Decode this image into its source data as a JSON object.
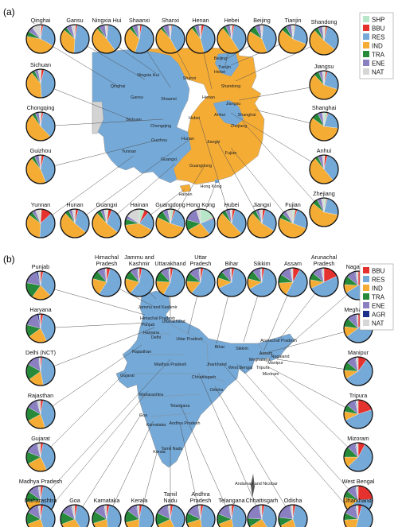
{
  "panel_a": {
    "label": "(a)",
    "legend": [
      {
        "code": "SHP",
        "color": "#b8e6c8"
      },
      {
        "code": "BBU",
        "color": "#e6322e"
      },
      {
        "code": "RES",
        "color": "#74a9d8"
      },
      {
        "code": "IND",
        "color": "#f5ac35"
      },
      {
        "code": "TRA",
        "color": "#268a3a"
      },
      {
        "code": "ENE",
        "color": "#8a7fc0"
      },
      {
        "code": "NAT",
        "color": "#d6d6d6"
      }
    ],
    "map_labels": [
      "Beijing",
      "Tianjin",
      "Hebei",
      "Shanxi",
      "Shandong",
      "Qinghai",
      "Ningxia Hui",
      "Gansu",
      "Shaanxi",
      "Henan",
      "Jiangsu",
      "Anhui",
      "Shanghai",
      "Sichuan",
      "Hubei",
      "Zhejiang",
      "Chongqing",
      "Guizhou",
      "Hunan",
      "Jiangxi",
      "Fujian",
      "Yunnan",
      "Guangxi",
      "Guangdong",
      "Hainan",
      "Hong Kong"
    ],
    "pies": [
      {
        "name": "Qinghai",
        "shares": {
          "SHP": 1,
          "BBU": 2,
          "RES": 30,
          "IND": 45,
          "TRA": 6,
          "ENE": 6,
          "NAT": 10
        }
      },
      {
        "name": "Gansu",
        "shares": {
          "SHP": 1,
          "BBU": 2,
          "RES": 48,
          "IND": 35,
          "TRA": 4,
          "ENE": 6,
          "NAT": 4
        }
      },
      {
        "name": "Ningxia Hui",
        "shares": {
          "SHP": 1,
          "BBU": 1,
          "RES": 38,
          "IND": 48,
          "TRA": 3,
          "ENE": 7,
          "NAT": 2
        }
      },
      {
        "name": "Shaanxi",
        "shares": {
          "SHP": 1,
          "BBU": 2,
          "RES": 52,
          "IND": 33,
          "TRA": 4,
          "ENE": 6,
          "NAT": 2
        }
      },
      {
        "name": "Shanxi",
        "shares": {
          "SHP": 1,
          "BBU": 1,
          "RES": 40,
          "IND": 46,
          "TRA": 3,
          "ENE": 7,
          "NAT": 2
        }
      },
      {
        "name": "Henan",
        "shares": {
          "SHP": 1,
          "BBU": 3,
          "RES": 42,
          "IND": 43,
          "TRA": 4,
          "ENE": 5,
          "NAT": 2
        }
      },
      {
        "name": "Hebei",
        "shares": {
          "SHP": 1,
          "BBU": 2,
          "RES": 38,
          "IND": 48,
          "TRA": 4,
          "ENE": 5,
          "NAT": 2
        }
      },
      {
        "name": "Beijing",
        "shares": {
          "SHP": 1,
          "BBU": 1,
          "RES": 42,
          "IND": 40,
          "TRA": 8,
          "ENE": 6,
          "NAT": 2
        }
      },
      {
        "name": "Tianjin",
        "shares": {
          "SHP": 2,
          "BBU": 1,
          "RES": 28,
          "IND": 55,
          "TRA": 6,
          "ENE": 6,
          "NAT": 2
        }
      },
      {
        "name": "Shandong",
        "shares": {
          "SHP": 2,
          "BBU": 2,
          "RES": 32,
          "IND": 52,
          "TRA": 5,
          "ENE": 5,
          "NAT": 2
        }
      },
      {
        "name": "Sichuan",
        "shares": {
          "SHP": 1,
          "BBU": 3,
          "RES": 45,
          "IND": 40,
          "TRA": 4,
          "ENE": 4,
          "NAT": 3
        }
      },
      {
        "name": "Jiangsu",
        "shares": {
          "SHP": 2,
          "BBU": 2,
          "RES": 26,
          "IND": 58,
          "TRA": 6,
          "ENE": 4,
          "NAT": 2
        }
      },
      {
        "name": "Chongqing",
        "shares": {
          "SHP": 1,
          "BBU": 2,
          "RES": 35,
          "IND": 52,
          "TRA": 4,
          "ENE": 4,
          "NAT": 2
        }
      },
      {
        "name": "Shanghai",
        "shares": {
          "SHP": 4,
          "BBU": 1,
          "RES": 22,
          "IND": 58,
          "TRA": 8,
          "ENE": 5,
          "NAT": 2
        }
      },
      {
        "name": "Guizhou",
        "shares": {
          "SHP": 1,
          "BBU": 3,
          "RES": 40,
          "IND": 45,
          "TRA": 4,
          "ENE": 5,
          "NAT": 2
        }
      },
      {
        "name": "Anhui",
        "shares": {
          "SHP": 1,
          "BBU": 3,
          "RES": 35,
          "IND": 50,
          "TRA": 4,
          "ENE": 5,
          "NAT": 2
        }
      },
      {
        "name": "Yunnan",
        "shares": {
          "SHP": 1,
          "BBU": 12,
          "RES": 38,
          "IND": 34,
          "TRA": 5,
          "ENE": 4,
          "NAT": 6
        }
      },
      {
        "name": "Hunan",
        "shares": {
          "SHP": 1,
          "BBU": 3,
          "RES": 32,
          "IND": 52,
          "TRA": 5,
          "ENE": 4,
          "NAT": 3
        }
      },
      {
        "name": "Guangxi",
        "shares": {
          "SHP": 2,
          "BBU": 4,
          "RES": 30,
          "IND": 52,
          "TRA": 5,
          "ENE": 4,
          "NAT": 3
        }
      },
      {
        "name": "Hainan",
        "shares": {
          "SHP": 6,
          "BBU": 5,
          "RES": 22,
          "IND": 40,
          "TRA": 7,
          "ENE": 4,
          "NAT": 16
        }
      },
      {
        "name": "Guangdong",
        "shares": {
          "SHP": 4,
          "BBU": 2,
          "RES": 24,
          "IND": 52,
          "TRA": 9,
          "ENE": 6,
          "NAT": 3
        }
      },
      {
        "name": "Hong Kong",
        "shares": {
          "SHP": 18,
          "BBU": 1,
          "RES": 20,
          "IND": 28,
          "TRA": 12,
          "ENE": 16,
          "NAT": 5
        }
      },
      {
        "name": "Hubei",
        "shares": {
          "SHP": 1,
          "BBU": 3,
          "RES": 34,
          "IND": 50,
          "TRA": 5,
          "ENE": 5,
          "NAT": 2
        }
      },
      {
        "name": "Jiangxi",
        "shares": {
          "SHP": 1,
          "BBU": 3,
          "RES": 30,
          "IND": 54,
          "TRA": 5,
          "ENE": 4,
          "NAT": 3
        }
      },
      {
        "name": "Fujian",
        "shares": {
          "SHP": 3,
          "BBU": 2,
          "RES": 26,
          "IND": 50,
          "TRA": 6,
          "ENE": 5,
          "NAT": 8
        }
      },
      {
        "name": "Zhejiang",
        "shares": {
          "SHP": 3,
          "BBU": 1,
          "RES": 24,
          "IND": 58,
          "TRA": 6,
          "ENE": 5,
          "NAT": 3
        }
      }
    ]
  },
  "panel_b": {
    "label": "(b)",
    "legend": [
      {
        "code": "BBU",
        "color": "#e6322e"
      },
      {
        "code": "RES",
        "color": "#74a9d8"
      },
      {
        "code": "IND",
        "color": "#f5ac35"
      },
      {
        "code": "TRA",
        "color": "#268a3a"
      },
      {
        "code": "ENE",
        "color": "#8a7fc0"
      },
      {
        "code": "AGR",
        "color": "#1a2f8c"
      },
      {
        "code": "NAT",
        "color": "#d6d6d6"
      }
    ],
    "map_labels": [
      "Jammu and Kashmir",
      "Himachal Pradesh",
      "Punjab",
      "Uttarakhand",
      "Haryana",
      "Delhi",
      "Rajasthan",
      "Uttar Pradesh",
      "Bihar",
      "Sikkim",
      "Arunachal Pradesh",
      "Assam",
      "Nagaland",
      "Meghalaya",
      "Manipur",
      "Tripura",
      "Mizoram",
      "Gujarat",
      "Madhya Pradesh",
      "Jharkhand",
      "West Bengal",
      "Chhattisgarh",
      "Odisha",
      "Maharashtra",
      "Telangana",
      "Goa",
      "Andhra Pradesh",
      "Karnataka",
      "Tamil Nadu",
      "Kerala",
      "Andaman and Nicobar"
    ],
    "pies": [
      {
        "name": "Punjab",
        "shares": {
          "BBU": 3,
          "RES": 35,
          "IND": 22,
          "TRA": 18,
          "ENE": 17,
          "AGR": 2,
          "NAT": 3
        }
      },
      {
        "name": "Himachal Pradesh",
        "shares": {
          "BBU": 4,
          "RES": 55,
          "IND": 20,
          "TRA": 10,
          "ENE": 8,
          "AGR": 1,
          "NAT": 2
        }
      },
      {
        "name": "Jammu and Kashmir",
        "shares": {
          "BBU": 3,
          "RES": 58,
          "IND": 18,
          "TRA": 10,
          "ENE": 8,
          "AGR": 1,
          "NAT": 2
        }
      },
      {
        "name": "Uttarakhand",
        "shares": {
          "BBU": 3,
          "RES": 55,
          "IND": 18,
          "TRA": 12,
          "ENE": 9,
          "AGR": 1,
          "NAT": 2
        }
      },
      {
        "name": "Uttar Pradesh",
        "shares": {
          "BBU": 3,
          "RES": 58,
          "IND": 15,
          "TRA": 10,
          "ENE": 11,
          "AGR": 1,
          "NAT": 2
        }
      },
      {
        "name": "Bihar",
        "shares": {
          "BBU": 3,
          "RES": 65,
          "IND": 12,
          "TRA": 8,
          "ENE": 9,
          "AGR": 1,
          "NAT": 2
        }
      },
      {
        "name": "Sikkim",
        "shares": {
          "BBU": 3,
          "RES": 64,
          "IND": 12,
          "TRA": 10,
          "ENE": 8,
          "AGR": 1,
          "NAT": 2
        }
      },
      {
        "name": "Assam",
        "shares": {
          "BBU": 8,
          "RES": 50,
          "IND": 16,
          "TRA": 10,
          "ENE": 12,
          "AGR": 1,
          "NAT": 3
        }
      },
      {
        "name": "Arunachal Pradesh",
        "shares": {
          "BBU": 18,
          "RES": 50,
          "IND": 10,
          "TRA": 8,
          "ENE": 10,
          "AGR": 1,
          "NAT": 3
        }
      },
      {
        "name": "Nagaland",
        "shares": {
          "BBU": 22,
          "RES": 44,
          "IND": 10,
          "TRA": 10,
          "ENE": 10,
          "AGR": 1,
          "NAT": 3
        }
      },
      {
        "name": "Haryana",
        "shares": {
          "BBU": 3,
          "RES": 40,
          "IND": 22,
          "TRA": 14,
          "ENE": 17,
          "AGR": 2,
          "NAT": 2
        }
      },
      {
        "name": "Meghalaya",
        "shares": {
          "BBU": 10,
          "RES": 55,
          "IND": 12,
          "TRA": 10,
          "ENE": 10,
          "AGR": 1,
          "NAT": 2
        }
      },
      {
        "name": "Delhi (NCT)",
        "shares": {
          "BBU": 2,
          "RES": 45,
          "IND": 18,
          "TRA": 18,
          "ENE": 14,
          "AGR": 1,
          "NAT": 2
        }
      },
      {
        "name": "Manipur",
        "shares": {
          "BBU": 10,
          "RES": 56,
          "IND": 10,
          "TRA": 10,
          "ENE": 10,
          "AGR": 1,
          "NAT": 3
        }
      },
      {
        "name": "Rajasthan",
        "shares": {
          "BBU": 3,
          "RES": 42,
          "IND": 22,
          "TRA": 16,
          "ENE": 12,
          "AGR": 1,
          "NAT": 4
        }
      },
      {
        "name": "Tripura",
        "shares": {
          "BBU": 20,
          "RES": 48,
          "IND": 10,
          "TRA": 8,
          "ENE": 10,
          "AGR": 1,
          "NAT": 3
        }
      },
      {
        "name": "Gujarat",
        "shares": {
          "BBU": 3,
          "RES": 40,
          "IND": 24,
          "TRA": 14,
          "ENE": 14,
          "AGR": 1,
          "NAT": 4
        }
      },
      {
        "name": "Mizoram",
        "shares": {
          "BBU": 8,
          "RES": 55,
          "IND": 12,
          "TRA": 12,
          "ENE": 9,
          "AGR": 1,
          "NAT": 3
        }
      },
      {
        "name": "Madhya Pradesh",
        "shares": {
          "BBU": 3,
          "RES": 50,
          "IND": 20,
          "TRA": 12,
          "ENE": 11,
          "AGR": 1,
          "NAT": 3
        }
      },
      {
        "name": "West Bengal",
        "shares": {
          "BBU": 24,
          "RES": 40,
          "IND": 14,
          "TRA": 8,
          "ENE": 10,
          "AGR": 1,
          "NAT": 3
        }
      },
      {
        "name": "Maharashtra",
        "shares": {
          "BBU": 3,
          "RES": 42,
          "IND": 24,
          "TRA": 14,
          "ENE": 13,
          "AGR": 1,
          "NAT": 3
        }
      },
      {
        "name": "Jharkhand",
        "shares": {
          "BBU": 4,
          "RES": 50,
          "IND": 20,
          "TRA": 8,
          "ENE": 14,
          "AGR": 1,
          "NAT": 3
        }
      },
      {
        "name": "Goa",
        "shares": {
          "BBU": 3,
          "RES": 38,
          "IND": 28,
          "TRA": 14,
          "ENE": 12,
          "AGR": 1,
          "NAT": 4
        }
      },
      {
        "name": "Karnataka",
        "shares": {
          "BBU": 3,
          "RES": 45,
          "IND": 22,
          "TRA": 14,
          "ENE": 12,
          "AGR": 1,
          "NAT": 3
        }
      },
      {
        "name": "Kerala",
        "shares": {
          "BBU": 3,
          "RES": 48,
          "IND": 20,
          "TRA": 14,
          "ENE": 11,
          "AGR": 1,
          "NAT": 3
        }
      },
      {
        "name": "Tamil Nadu",
        "shares": {
          "BBU": 3,
          "RES": 40,
          "IND": 25,
          "TRA": 14,
          "ENE": 14,
          "AGR": 1,
          "NAT": 3
        }
      },
      {
        "name": "Andhra Pradesh",
        "shares": {
          "BBU": 3,
          "RES": 45,
          "IND": 22,
          "TRA": 12,
          "ENE": 14,
          "AGR": 1,
          "NAT": 3
        }
      },
      {
        "name": "Telangana",
        "shares": {
          "BBU": 3,
          "RES": 44,
          "IND": 22,
          "TRA": 12,
          "ENE": 15,
          "AGR": 1,
          "NAT": 3
        }
      },
      {
        "name": "Chhattisgarh",
        "shares": {
          "BBU": 3,
          "RES": 38,
          "IND": 25,
          "TRA": 10,
          "ENE": 20,
          "AGR": 1,
          "NAT": 3
        }
      },
      {
        "name": "Odisha",
        "shares": {
          "BBU": 3,
          "RES": 42,
          "IND": 22,
          "TRA": 10,
          "ENE": 19,
          "AGR": 1,
          "NAT": 3
        }
      }
    ]
  }
}
